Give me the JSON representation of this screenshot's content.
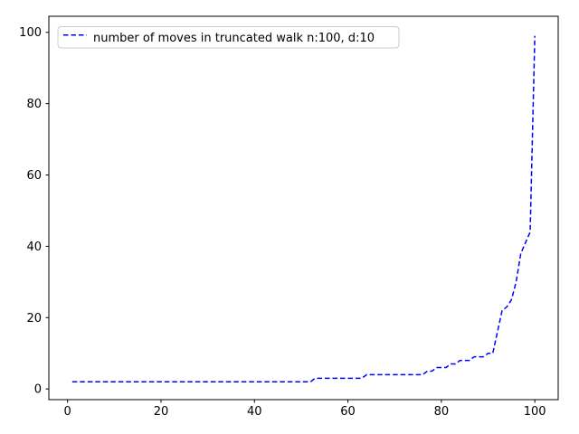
{
  "figure": {
    "background": "#ffffff"
  },
  "colors": {
    "axis": "#000000",
    "tick_label": "#000000",
    "legend_border": "#cccccc",
    "legend_background": "#ffffff",
    "series_blue": "#0000ff"
  },
  "chart_data": {
    "type": "line",
    "title": "",
    "xlabel": "",
    "ylabel": "",
    "grid": false,
    "legend_position": "upper left",
    "xlim": [
      -4,
      105
    ],
    "ylim": [
      -3,
      104.5
    ],
    "xticks": [
      0,
      20,
      40,
      60,
      80,
      100
    ],
    "yticks": [
      0,
      20,
      40,
      60,
      80,
      100
    ],
    "x": [
      1,
      2,
      3,
      4,
      5,
      6,
      7,
      8,
      9,
      10,
      11,
      12,
      13,
      14,
      15,
      16,
      17,
      18,
      19,
      20,
      21,
      22,
      23,
      24,
      25,
      26,
      27,
      28,
      29,
      30,
      31,
      32,
      33,
      34,
      35,
      36,
      37,
      38,
      39,
      40,
      41,
      42,
      43,
      44,
      45,
      46,
      47,
      48,
      49,
      50,
      51,
      52,
      53,
      54,
      55,
      56,
      57,
      58,
      59,
      60,
      61,
      62,
      63,
      64,
      65,
      66,
      67,
      68,
      69,
      70,
      71,
      72,
      73,
      74,
      75,
      76,
      77,
      78,
      79,
      80,
      81,
      82,
      83,
      84,
      85,
      86,
      87,
      88,
      89,
      90,
      91,
      92,
      93,
      94,
      95,
      96,
      97,
      98,
      99,
      100
    ],
    "series": [
      {
        "name": "number of moves in truncated walk n:100, d:10",
        "color": "#0000ff",
        "linestyle": "dashed",
        "linewidth": 1.5,
        "values": [
          2,
          2,
          2,
          2,
          2,
          2,
          2,
          2,
          2,
          2,
          2,
          2,
          2,
          2,
          2,
          2,
          2,
          2,
          2,
          2,
          2,
          2,
          2,
          2,
          2,
          2,
          2,
          2,
          2,
          2,
          2,
          2,
          2,
          2,
          2,
          2,
          2,
          2,
          2,
          2,
          2,
          2,
          2,
          2,
          2,
          2,
          2,
          2,
          2,
          2,
          2,
          2,
          3,
          3,
          3,
          3,
          3,
          3,
          3,
          3,
          3,
          3,
          3,
          4,
          4,
          4,
          4,
          4,
          4,
          4,
          4,
          4,
          4,
          4,
          4,
          4,
          5,
          5,
          6,
          6,
          6,
          7,
          7,
          8,
          8,
          8,
          9,
          9,
          9,
          10,
          10,
          16,
          22,
          23,
          25,
          30,
          38,
          41,
          44,
          99
        ]
      }
    ]
  }
}
